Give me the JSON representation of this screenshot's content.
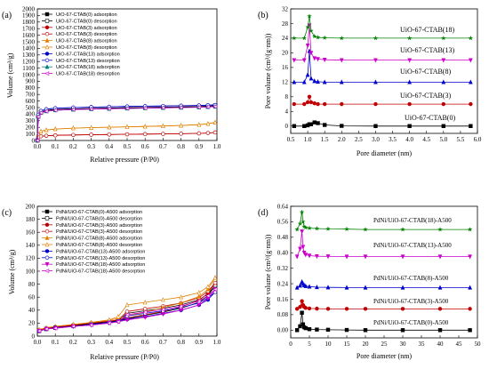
{
  "chart_data": [
    {
      "panel": "(a)",
      "type": "line",
      "xlabel": "Relative pressure (P/P0)",
      "ylabel": "Volume (cm³/g)",
      "xlim": [
        0.0,
        1.0
      ],
      "ylim": [
        0,
        2000
      ],
      "xticks": [
        "0.0",
        "0.1",
        "0.2",
        "0.3",
        "0.4",
        "0.5",
        "0.6",
        "0.7",
        "0.8",
        "0.9",
        "1.0"
      ],
      "yticks": [
        "0",
        "100",
        "200",
        "300",
        "400",
        "500",
        "600",
        "700",
        "800",
        "900",
        "1000",
        "1100",
        "1200",
        "1300",
        "1400",
        "1500",
        "1600",
        "1700",
        "1800",
        "1900",
        "2000"
      ],
      "legend_position": "top-left",
      "x": [
        0.0,
        0.005,
        0.02,
        0.05,
        0.1,
        0.2,
        0.3,
        0.4,
        0.5,
        0.6,
        0.7,
        0.8,
        0.9,
        0.95,
        0.99
      ],
      "series": [
        {
          "name": "UiO-67-CTAB(0) adsorption",
          "color": "#000000",
          "marker": "square",
          "filled": true,
          "values": [
            0,
            370,
            430,
            455,
            470,
            480,
            487,
            492,
            497,
            502,
            506,
            510,
            515,
            520,
            530
          ]
        },
        {
          "name": "UiO-67-CTAB(0) desorption",
          "color": "#000000",
          "marker": "square",
          "filled": false,
          "values": [
            0,
            370,
            430,
            455,
            470,
            480,
            487,
            492,
            497,
            502,
            506,
            510,
            515,
            520,
            530
          ]
        },
        {
          "name": "UiO-67-CTAB(3) adsorption",
          "color": "#c00000",
          "marker": "circle",
          "filled": true,
          "values": [
            0,
            50,
            65,
            72,
            78,
            84,
            88,
            91,
            94,
            97,
            100,
            103,
            108,
            114,
            122
          ]
        },
        {
          "name": "UiO-67-CTAB(3) desorption",
          "color": "#c00000",
          "marker": "circle",
          "filled": false,
          "values": [
            0,
            50,
            65,
            72,
            78,
            84,
            88,
            91,
            94,
            97,
            100,
            103,
            108,
            114,
            122
          ]
        },
        {
          "name": "UiO-67-CTAB(8) adsorption",
          "color": "#e08000",
          "marker": "triangle",
          "filled": true,
          "values": [
            0,
            100,
            140,
            160,
            175,
            188,
            196,
            202,
            208,
            214,
            220,
            228,
            240,
            255,
            275
          ]
        },
        {
          "name": "UiO-67-CTAB(8) desorption",
          "color": "#e08000",
          "marker": "triangle",
          "filled": false,
          "values": [
            0,
            100,
            140,
            160,
            175,
            188,
            196,
            202,
            208,
            214,
            220,
            228,
            240,
            255,
            275
          ]
        },
        {
          "name": "UiO-67-CTAB(13) adsorption",
          "color": "#0000cc",
          "marker": "circle",
          "filled": true,
          "values": [
            0,
            390,
            450,
            475,
            490,
            500,
            507,
            512,
            517,
            521,
            525,
            529,
            533,
            537,
            540
          ]
        },
        {
          "name": "UiO-67-CTAB(13) desorption",
          "color": "#0000cc",
          "marker": "circle",
          "filled": false,
          "values": [
            0,
            390,
            450,
            475,
            490,
            500,
            507,
            512,
            517,
            521,
            525,
            529,
            533,
            537,
            540
          ]
        },
        {
          "name": "UiO-67-CTAB(18) adsorption",
          "color": "#008080",
          "marker": "triangle",
          "filled": true,
          "values": [
            0,
            360,
            420,
            445,
            460,
            470,
            477,
            482,
            487,
            492,
            496,
            500,
            505,
            510,
            515
          ]
        },
        {
          "name": "UiO-67-CTAB(18) desorption",
          "color": "#cc00cc",
          "marker": "triangle-left",
          "filled": false,
          "values": [
            0,
            360,
            420,
            445,
            460,
            470,
            477,
            482,
            487,
            492,
            496,
            500,
            505,
            510,
            515
          ]
        }
      ]
    },
    {
      "panel": "(b)",
      "type": "line",
      "xlabel": "Pore diameter (nm)",
      "ylabel": "Pore volume (cm³/(g·nm))",
      "xlim": [
        0.5,
        6.0
      ],
      "ylim": [
        -2,
        32
      ],
      "xticks": [
        "0.5",
        "1.0",
        "1.5",
        "2.0",
        "2.5",
        "3.0",
        "3.5",
        "4.0",
        "4.5",
        "5.0",
        "5.5",
        "6.0"
      ],
      "yticks": [
        "0",
        "4",
        "8",
        "12",
        "16",
        "20",
        "24",
        "28",
        "32"
      ],
      "x": [
        0.6,
        0.9,
        1.0,
        1.05,
        1.1,
        1.2,
        1.3,
        1.5,
        2.0,
        3.0,
        4.0,
        5.0,
        5.8
      ],
      "series": [
        {
          "name": "UiO-67-CTAB(0)",
          "color": "#000000",
          "marker": "square",
          "values": [
            0,
            0,
            0.2,
            0.5,
            0.5,
            1.0,
            0.8,
            0.3,
            0.05,
            0,
            0,
            0,
            0
          ]
        },
        {
          "name": "UiO-67-CTAB(3)",
          "color": "#c00000",
          "marker": "circle",
          "values": [
            6,
            6,
            6.5,
            8.0,
            6.5,
            6.2,
            6.0,
            6.0,
            6.0,
            6.0,
            6.0,
            6.0,
            6.0
          ]
        },
        {
          "name": "UiO-67-CTAB(8)",
          "color": "#0000cc",
          "marker": "triangle",
          "values": [
            12,
            12,
            14,
            20.5,
            13,
            12.3,
            12.1,
            12,
            12,
            12,
            12,
            12,
            12
          ]
        },
        {
          "name": "UiO-67-CTAB(13)",
          "color": "#cc00cc",
          "marker": "triangle-down",
          "values": [
            18,
            18,
            22,
            27.5,
            20,
            18.5,
            18.3,
            18.1,
            18,
            18,
            18,
            18,
            18
          ]
        },
        {
          "name": "UiO-67-CTAB(18)",
          "color": "#008000",
          "marker": "star",
          "values": [
            24,
            24,
            27,
            30.0,
            26,
            24.5,
            24.2,
            24.1,
            24,
            24,
            24,
            24,
            24
          ]
        }
      ],
      "annotations": [
        "UiO-67-CTAB(18)",
        "UiO-67-CTAB(13)",
        "UiO-67-CTAB(8)",
        "UiO-67-CTAB(3)",
        "UiO-67-CTAB(0)"
      ]
    },
    {
      "panel": "(c)",
      "type": "line",
      "xlabel": "Relative pressure (P/P0)",
      "ylabel": "Volume (cm³/g)",
      "xlim": [
        0.0,
        1.0
      ],
      "ylim": [
        0,
        200
      ],
      "xticks": [
        "0.0",
        "0.1",
        "0.2",
        "0.3",
        "0.4",
        "0.5",
        "0.6",
        "0.7",
        "0.8",
        "0.9",
        "1.0"
      ],
      "yticks": [
        "0",
        "20",
        "40",
        "60",
        "80",
        "100",
        "120",
        "140",
        "160",
        "180",
        "200"
      ],
      "legend_position": "top-left",
      "x": [
        0.01,
        0.05,
        0.1,
        0.2,
        0.3,
        0.4,
        0.45,
        0.5,
        0.6,
        0.7,
        0.8,
        0.9,
        0.95,
        0.99
      ],
      "series": [
        {
          "name": "PdNi/UiO-67-CTAB(0)-A500 adsorption",
          "color": "#000000",
          "marker": "square",
          "filled": true,
          "values": [
            8,
            11,
            13,
            16,
            19,
            22,
            24,
            27,
            32,
            37,
            43,
            52,
            62,
            78
          ]
        },
        {
          "name": "PdNi/UiO-67-CTAB(0)-A500 desorption",
          "color": "#000000",
          "marker": "square",
          "filled": false,
          "values": [
            8,
            11,
            13,
            16,
            19,
            22,
            24,
            35,
            39,
            43,
            48,
            56,
            65,
            78
          ]
        },
        {
          "name": "PdNi/UiO-67-CTAB(3)-A500 adsorption",
          "color": "#c00000",
          "marker": "circle",
          "filled": true,
          "values": [
            9,
            12,
            14,
            17,
            20,
            23,
            25,
            28,
            33,
            38,
            45,
            55,
            66,
            82
          ]
        },
        {
          "name": "PdNi/UiO-67-CTAB(3)-A500 desorption",
          "color": "#c00000",
          "marker": "circle",
          "filled": false,
          "values": [
            9,
            12,
            14,
            17,
            20,
            23,
            25,
            38,
            42,
            46,
            51,
            59,
            69,
            82
          ]
        },
        {
          "name": "PdNi/UiO-67-CTAB(8)-A500 adsorption",
          "color": "#e08000",
          "marker": "triangle",
          "filled": true,
          "values": [
            10,
            13,
            15,
            18,
            21,
            25,
            27,
            31,
            37,
            44,
            51,
            61,
            72,
            90
          ]
        },
        {
          "name": "PdNi/UiO-67-CTAB(8)-A500 desorption",
          "color": "#e08000",
          "marker": "triangle",
          "filled": false,
          "values": [
            10,
            13,
            15,
            18,
            21,
            25,
            30,
            48,
            52,
            56,
            60,
            67,
            76,
            90
          ]
        },
        {
          "name": "PdNi/UiO-67-CTAB(13)-A500 adsorption",
          "color": "#0000cc",
          "marker": "circle",
          "filled": true,
          "values": [
            8,
            11,
            13,
            15,
            18,
            21,
            23,
            26,
            30,
            35,
            40,
            48,
            56,
            68
          ]
        },
        {
          "name": "PdNi/UiO-67-CTAB(13)-A500 desorption",
          "color": "#0000cc",
          "marker": "circle",
          "filled": false,
          "values": [
            8,
            11,
            13,
            15,
            18,
            21,
            23,
            31,
            35,
            39,
            44,
            51,
            59,
            68
          ]
        },
        {
          "name": "PdNi/UiO-67-CTAB(18)-A500 adsorption",
          "color": "#cc00cc",
          "marker": "triangle-down",
          "filled": true,
          "values": [
            8,
            11,
            12,
            15,
            17,
            20,
            22,
            25,
            29,
            34,
            40,
            48,
            58,
            72
          ]
        },
        {
          "name": "PdNi/UiO-67-CTAB(18)-A500 desorption",
          "color": "#cc00cc",
          "marker": "triangle-left",
          "filled": false,
          "values": [
            8,
            11,
            12,
            15,
            17,
            20,
            22,
            33,
            37,
            41,
            46,
            54,
            62,
            72
          ]
        }
      ]
    },
    {
      "panel": "(d)",
      "type": "line",
      "xlabel": "Pore diameter (nm)",
      "ylabel": "Pore volume (cm³/(g·nm))",
      "xlim": [
        0,
        50
      ],
      "ylim": [
        -0.04,
        0.64
      ],
      "xticks": [
        "0",
        "5",
        "10",
        "15",
        "20",
        "25",
        "30",
        "35",
        "40",
        "45",
        "50"
      ],
      "yticks": [
        "0.00",
        "0.08",
        "0.16",
        "0.24",
        "0.32",
        "0.40",
        "0.48",
        "0.56",
        "0.64"
      ],
      "x": [
        1.7,
        2.5,
        3.0,
        3.3,
        3.6,
        4.0,
        5.0,
        7.0,
        10.0,
        15.0,
        20.0,
        30.0,
        40.0,
        48.0
      ],
      "series": [
        {
          "name": "PdNi/UiO-67-CTAB(0)-A500",
          "color": "#000000",
          "marker": "square",
          "values": [
            0.0,
            0.02,
            0.09,
            0.03,
            0.015,
            0.01,
            0.005,
            0.003,
            0.002,
            0.001,
            0.0,
            0.0,
            0.0,
            0.0
          ]
        },
        {
          "name": "PdNi/UiO-67-CTAB(3)-A500",
          "color": "#c00000",
          "marker": "circle",
          "values": [
            0.11,
            0.12,
            0.15,
            0.13,
            0.12,
            0.115,
            0.112,
            0.111,
            0.11,
            0.11,
            0.11,
            0.11,
            0.11,
            0.11
          ]
        },
        {
          "name": "PdNi/UiO-67-CTAB(8)-A500",
          "color": "#0000cc",
          "marker": "triangle",
          "values": [
            0.22,
            0.23,
            0.25,
            0.24,
            0.232,
            0.228,
            0.225,
            0.222,
            0.221,
            0.22,
            0.22,
            0.22,
            0.22,
            0.22
          ]
        },
        {
          "name": "PdNi/UiO-67-CTAB(13)-A500",
          "color": "#cc00cc",
          "marker": "triangle-down",
          "values": [
            0.38,
            0.42,
            0.51,
            0.43,
            0.4,
            0.39,
            0.385,
            0.382,
            0.381,
            0.38,
            0.38,
            0.38,
            0.38,
            0.38
          ]
        },
        {
          "name": "PdNi/UiO-67-CTAB(18)-A500",
          "color": "#008000",
          "marker": "star",
          "values": [
            0.52,
            0.55,
            0.61,
            0.56,
            0.535,
            0.53,
            0.527,
            0.525,
            0.523,
            0.522,
            0.52,
            0.52,
            0.52,
            0.52
          ]
        }
      ],
      "annotations": [
        "PdNi/UiO-67-CTAB(18)-A500",
        "PdNi/UiO-67-CTAB(13)-A500",
        "PdNi/UiO-67-CTAB(8)-A500",
        "PdNi/UiO-67-CTAB(3)-A500",
        "PdNi/UiO-67-CTAB(0)-A500"
      ]
    }
  ]
}
